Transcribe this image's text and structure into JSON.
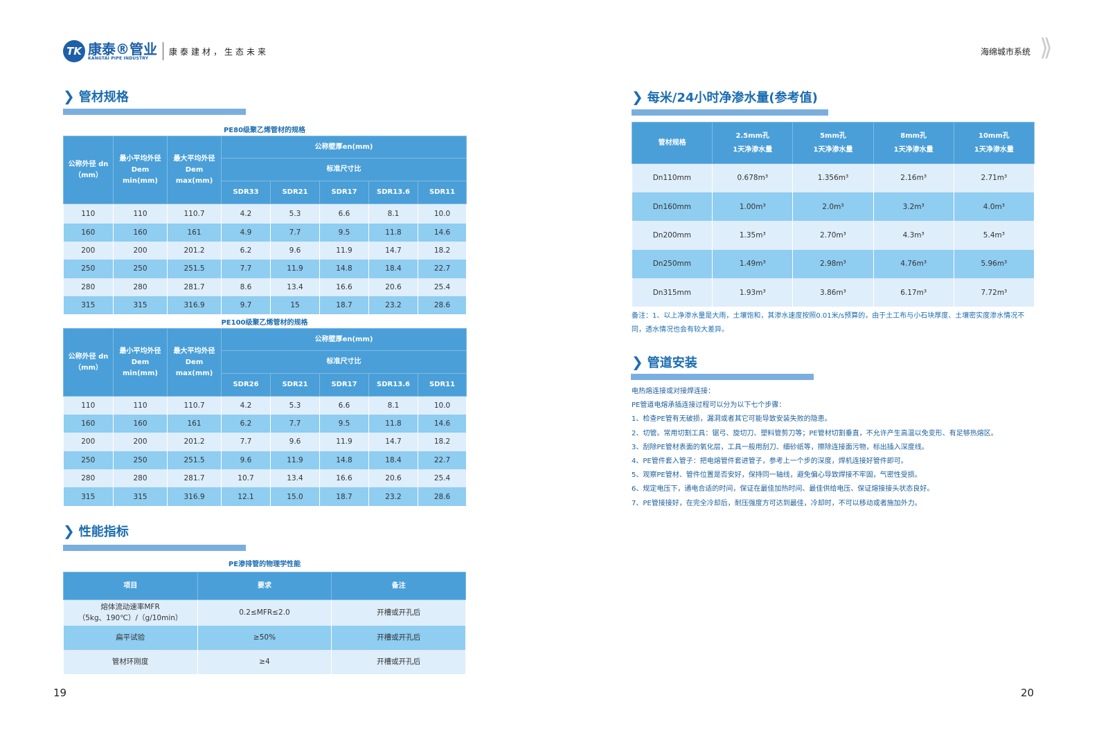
{
  "header": {
    "logo_mark": "TK",
    "logo_cn": "康泰®管业",
    "logo_en": "KANGTAI PIPE INDUSTRY",
    "slogan": "康泰建材，生态未来",
    "system": "海绵城市系统"
  },
  "left": {
    "sec1_title": "管材规格",
    "pe80": {
      "caption": "PE80级聚乙烯管材的规格",
      "h": {
        "dn": "公称外径 dn（mm）",
        "min": "最小平均外径 Dem min(mm)",
        "max": "最大平均外径 Dem max(mm)",
        "wall": "公称壁厚en(mm)",
        "sdr": "标准尺寸比"
      },
      "sdr_cols": [
        "SDR33",
        "SDR21",
        "SDR17",
        "SDR13.6",
        "SDR11"
      ],
      "rows": [
        [
          "110",
          "110",
          "110.7",
          "4.2",
          "5.3",
          "6.6",
          "8.1",
          "10.0"
        ],
        [
          "160",
          "160",
          "161",
          "4.9",
          "7.7",
          "9.5",
          "11.8",
          "14.6"
        ],
        [
          "200",
          "200",
          "201.2",
          "6.2",
          "9.6",
          "11.9",
          "14.7",
          "18.2"
        ],
        [
          "250",
          "250",
          "251.5",
          "7.7",
          "11.9",
          "14.8",
          "18.4",
          "22.7"
        ],
        [
          "280",
          "280",
          "281.7",
          "8.6",
          "13.4",
          "16.6",
          "20.6",
          "25.4"
        ],
        [
          "315",
          "315",
          "316.9",
          "9.7",
          "15",
          "18.7",
          "23.2",
          "28.6"
        ]
      ]
    },
    "pe100": {
      "caption": "PE100级聚乙烯管材的规格",
      "h": {
        "dn": "公称外径 dn（mm）",
        "min": "最小平均外径 Dem min(mm)",
        "max": "最大平均外径 Dem max(mm)",
        "wall": "公称壁厚en(mm)",
        "sdr": "标准尺寸比"
      },
      "sdr_cols": [
        "SDR26",
        "SDR21",
        "SDR17",
        "SDR13.6",
        "SDR11"
      ],
      "rows": [
        [
          "110",
          "110",
          "110.7",
          "4.2",
          "5.3",
          "6.6",
          "8.1",
          "10.0"
        ],
        [
          "160",
          "160",
          "161",
          "6.2",
          "7.7",
          "9.5",
          "11.8",
          "14.6"
        ],
        [
          "200",
          "200",
          "201.2",
          "7.7",
          "9.6",
          "11.9",
          "14.7",
          "18.2"
        ],
        [
          "250",
          "250",
          "251.5",
          "9.6",
          "11.9",
          "14.8",
          "18.4",
          "22.7"
        ],
        [
          "280",
          "280",
          "281.7",
          "10.7",
          "13.4",
          "16.6",
          "20.6",
          "25.4"
        ],
        [
          "315",
          "315",
          "316.9",
          "12.1",
          "15.0",
          "18.7",
          "23.2",
          "28.6"
        ]
      ]
    },
    "sec2_title": "性能指标",
    "perf": {
      "caption": "PE渗排管的物理学性能",
      "headers": [
        "项目",
        "要求",
        "备注"
      ],
      "rows": [
        [
          "熔体流动速率MFR\n（5kg、190℃）/（g/10min）",
          "0.2≤MFR≤2.0",
          "开槽或开孔后"
        ],
        [
          "扁平试验",
          "≥50%",
          "开槽或开孔后"
        ],
        [
          "管材环刚度",
          "≥4",
          "开槽或开孔后"
        ]
      ]
    },
    "page": "19"
  },
  "right": {
    "sec1_title": "每米/24小时净渗水量(参考值)",
    "seep": {
      "headers": [
        "管材规格",
        "2.5mm孔\n1天净渗水量",
        "5mm孔\n1天净渗水量",
        "8mm孔\n1天净渗水量",
        "10mm孔\n1天净渗水量"
      ],
      "rows": [
        [
          "Dn110mm",
          "0.678m³",
          "1.356m³",
          "2.16m³",
          "2.71m³"
        ],
        [
          "Dn160mm",
          "1.00m³",
          "2.0m³",
          "3.2m³",
          "4.0m³"
        ],
        [
          "Dn200mm",
          "1.35m³",
          "2.70m³",
          "4.3m³",
          "5.4m³"
        ],
        [
          "Dn250mm",
          "1.49m³",
          "2.98m³",
          "4.76m³",
          "5.96m³"
        ],
        [
          "Dn315mm",
          "1.93m³",
          "3.86m³",
          "6.17m³",
          "7.72m³"
        ]
      ]
    },
    "note": "备注：1、以上净渗水量是大雨，土壤饱和，其渗水速度按照0.01米/s预算的，由于土工布与小石块厚度、土壤密实度渗水情况不同，透水情况也会有较大差异。",
    "sec2_title": "管道安装",
    "steps": [
      "电热熔连接或对接焊连接：",
      "PE管道电熔承插连接过程可以分为以下七个步骤：",
      "1、检查PE管有无破损，漏洞或者其它可能导致安装失败的隐患。",
      "2、切管。常用切割工具：锯弓、旋切刀、塑料管剪刀等；PE管材切割垂直，不允许产生高温以免变形、有足够热熔区。",
      "3、刮除PE管材表面的氧化层，工具一般用刮刀、细砂纸等，擦除连接面污物，标出插入深度线。",
      "4、PE管件套入管子：把电熔管件套进管子，参考上一个步的深度，焊机连接好管件即可。",
      "5、观察PE管材、管件位置是否安好，保持同一轴线，避免偏心导致焊接不牢固，气密性受损。",
      "6、规定电压下，通电合适的时间，保证在最佳加热时间、最佳供给电压、保证熔接接头状态良好。",
      "7、PE管接接好，在完全冷却后，耐压强度方可达到最佳，冷却时，不可以移动或者施加外力。"
    ],
    "page": "20"
  },
  "colors": {
    "header": "#4a9fd8",
    "row_light": "#dfeefb",
    "row_mid": "#8fcdf1",
    "accent": "#1a6cb0"
  }
}
